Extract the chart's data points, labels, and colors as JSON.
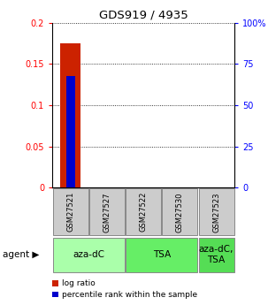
{
  "title": "GDS919 / 4935",
  "samples": [
    "GSM27521",
    "GSM27527",
    "GSM27522",
    "GSM27530",
    "GSM27523"
  ],
  "log_ratios": [
    0.175,
    0.0,
    0.0,
    0.0,
    0.0
  ],
  "percentile_ranks": [
    67.5,
    0.0,
    0.0,
    0.0,
    0.0
  ],
  "ylim_left": [
    0,
    0.2
  ],
  "ylim_right": [
    0,
    100
  ],
  "yticks_left": [
    0,
    0.05,
    0.1,
    0.15,
    0.2
  ],
  "ytick_labels_left": [
    "0",
    "0.05",
    "0.1",
    "0.15",
    "0.2"
  ],
  "yticks_right": [
    0,
    25,
    50,
    75,
    100
  ],
  "ytick_labels_right": [
    "0",
    "25",
    "50",
    "75",
    "100%"
  ],
  "agent_groups": [
    {
      "label": "aza-dC",
      "span": [
        0,
        2
      ],
      "color": "#aaffaa"
    },
    {
      "label": "TSA",
      "span": [
        2,
        4
      ],
      "color": "#66ee66"
    },
    {
      "label": "aza-dC,\nTSA",
      "span": [
        4,
        5
      ],
      "color": "#55dd55"
    }
  ],
  "bar_color_log": "#cc2200",
  "bar_color_pct": "#0000cc",
  "bar_width": 0.55,
  "pct_bar_width": 0.25,
  "sample_box_color": "#cccccc",
  "sample_box_edge": "#888888",
  "agent_label": "agent ▶",
  "legend_log": "log ratio",
  "legend_pct": "percentile rank within the sample",
  "title_fontsize": 9.5,
  "tick_fontsize": 7,
  "sample_fontsize": 6,
  "agent_fontsize": 7.5,
  "legend_fontsize": 6.5
}
